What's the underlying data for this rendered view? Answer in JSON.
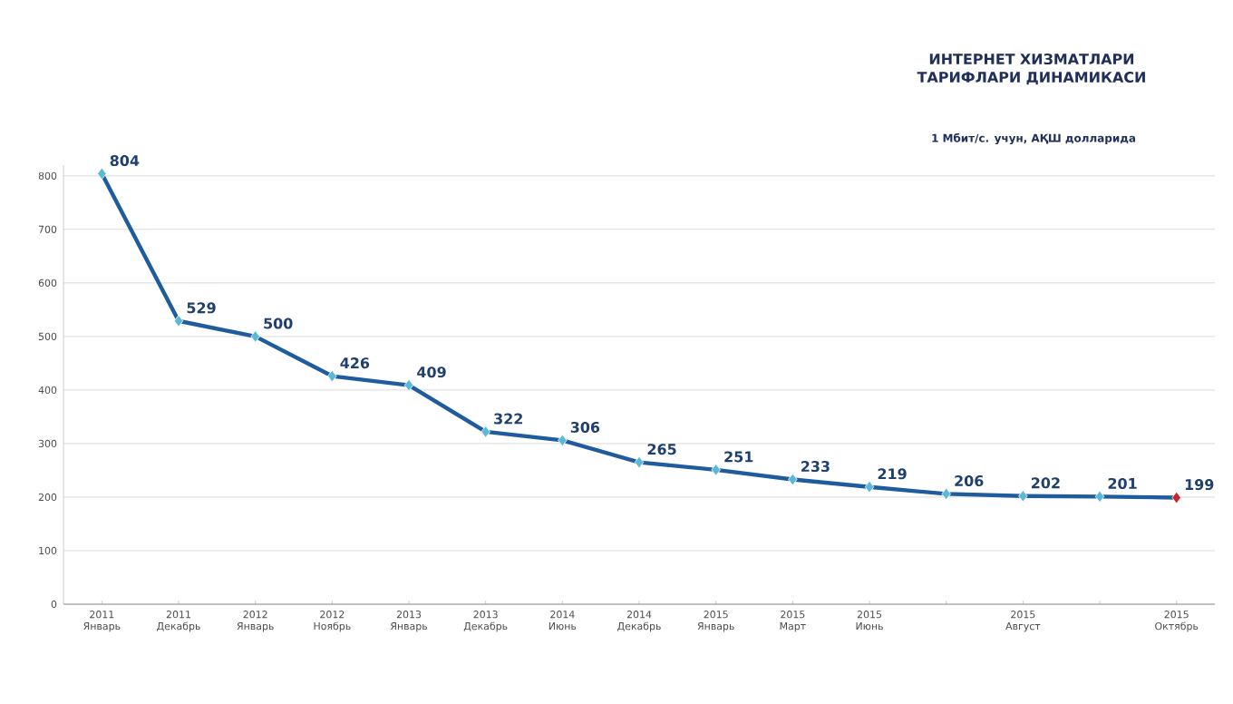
{
  "chart_data": {
    "type": "line",
    "title": "ИНТЕРНЕТ ХИЗМАТЛАРИ ТАРИФЛАРИ ДИНАМИКАСИ",
    "subtitle": "1 Мбит/с. учун, АҚШ долларида",
    "categories": [
      "2011 Январь",
      "2011 Декабрь",
      "2012 Январь",
      "2012 Ноябрь",
      "2013 Январь",
      "2013 Декабрь",
      "2014 Июнь",
      "2014 Декабрь",
      "2015 Январь",
      "2015 Март",
      "2015 Июнь",
      null,
      "2015 Август",
      null,
      "2015 Октябрь"
    ],
    "series": [
      {
        "color": "#1f5c9e",
        "values": [
          804,
          529,
          500,
          426,
          409,
          322,
          306,
          265,
          251,
          233,
          219,
          206,
          202,
          201,
          199
        ],
        "value_labels": [
          "804",
          "529",
          "500",
          "426",
          "409",
          "322",
          "306",
          "265",
          "251",
          "233",
          "219",
          "206",
          "202",
          "201",
          "199"
        ],
        "colors": [
          "#5bb8d8",
          "#5bb8d8",
          "#5bb8d8",
          "#5bb8d8",
          "#5bb8d8",
          "#5bb8d8",
          "#5bb8d8",
          "#5bb8d8",
          "#5bb8d8",
          "#5bb8d8",
          "#5bb8d8",
          "#5bb8d8",
          "#5bb8d8",
          "#5bb8d8",
          "#c0282d"
        ]
      }
    ],
    "ylim": [
      0,
      820
    ],
    "yticks": [
      0,
      100,
      200,
      300,
      400,
      500,
      600,
      700,
      800
    ],
    "grid": "y",
    "marker": "diamond",
    "line_style": "solid"
  }
}
